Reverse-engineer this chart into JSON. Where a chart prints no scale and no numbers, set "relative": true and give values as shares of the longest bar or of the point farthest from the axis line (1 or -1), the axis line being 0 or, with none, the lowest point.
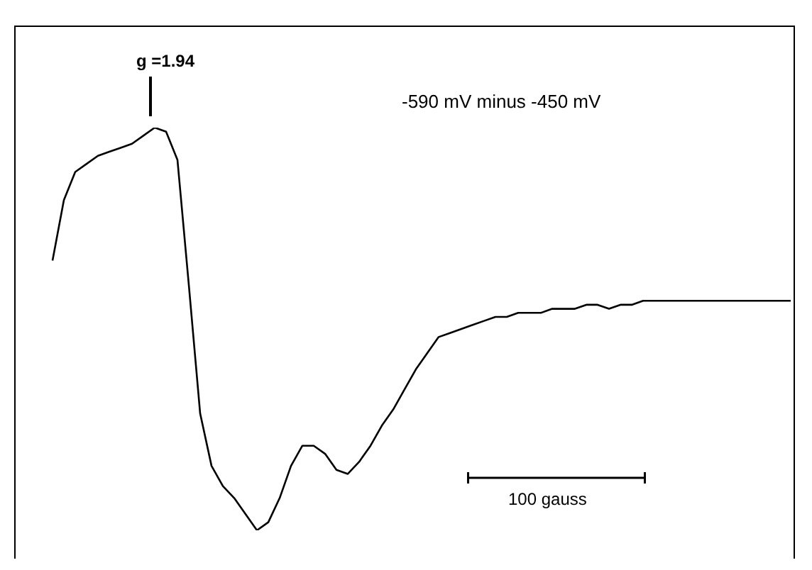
{
  "chart_data": {
    "type": "line",
    "relative": true,
    "categories": [
      null,
      null,
      null,
      null,
      null,
      null,
      null,
      null,
      null,
      null,
      null,
      null,
      null,
      null,
      null,
      null,
      null,
      null,
      null,
      null,
      null,
      null,
      null,
      null,
      null,
      null,
      null,
      null,
      null,
      null,
      null,
      null,
      null,
      null,
      null,
      null,
      null,
      null,
      null,
      null,
      null,
      null,
      null,
      null,
      null,
      null,
      null,
      null,
      null,
      null,
      null,
      null,
      null,
      null,
      null,
      null,
      null,
      null,
      null,
      null,
      null,
      null,
      null,
      null,
      null,
      null
    ],
    "series": [
      {
        "color": "#000000",
        "values": [
          0.67,
          0.82,
          0.89,
          0.91,
          0.93,
          0.94,
          0.95,
          0.96,
          0.98,
          1.0,
          0.99,
          0.92,
          0.61,
          0.29,
          0.16,
          0.11,
          0.08,
          0.04,
          0.0,
          0.02,
          0.08,
          0.16,
          0.21,
          0.21,
          0.19,
          0.15,
          0.14,
          0.17,
          0.21,
          0.26,
          0.3,
          0.35,
          0.4,
          0.44,
          0.48,
          0.49,
          0.5,
          0.51,
          0.52,
          0.53,
          0.53,
          0.54,
          0.54,
          0.54,
          0.55,
          0.55,
          0.55,
          0.56,
          0.56,
          0.55,
          0.56,
          0.56,
          0.57,
          0.57,
          0.57,
          0.57,
          0.57,
          0.57,
          0.57,
          0.57,
          0.57,
          0.57,
          0.57,
          0.57,
          0.57,
          0.57
        ]
      }
    ],
    "annotations": [
      "g =1.94",
      "-590 mV minus -450 mV",
      "100 gauss"
    ]
  }
}
